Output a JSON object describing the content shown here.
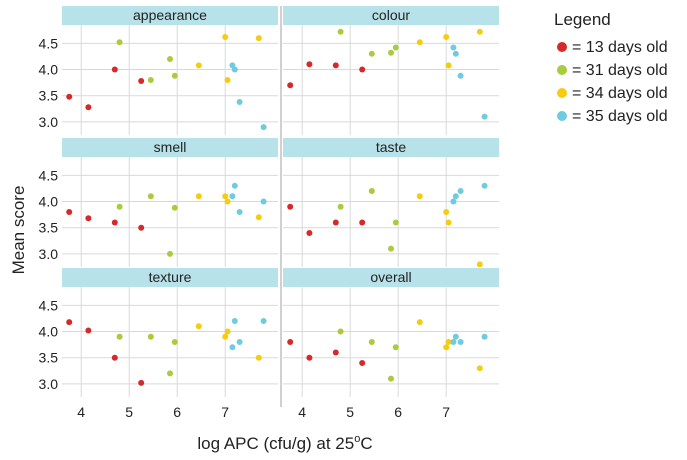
{
  "chart_data": {
    "type": "scatter",
    "xlabel": "log APC (cfu/g) at 25",
    "xlabel_sup": "o",
    "xlabel_suffix": "C",
    "ylabel": "Mean score",
    "xlim": [
      3.6,
      8.1
    ],
    "ylim": [
      2.75,
      4.85
    ],
    "xticks": [
      4,
      5,
      6,
      7
    ],
    "yticks": [
      3.0,
      3.5,
      4.0,
      4.5
    ],
    "ytick_labels": [
      "3.0",
      "3.5",
      "4.0",
      "4.5"
    ],
    "grid": true,
    "legend": {
      "title": "Legend",
      "position": "right",
      "entries": [
        {
          "label": "= 13 days old",
          "color": "#d62a2a"
        },
        {
          "label": "= 31 days old",
          "color": "#a8cc3c"
        },
        {
          "label": "= 34 days old",
          "color": "#f5cc10"
        },
        {
          "label": "= 35 days old",
          "color": "#6fcbe0"
        }
      ]
    },
    "colors": {
      "strip_bg": "#b8e2ea",
      "grid": "#d9d9d9",
      "divider": "#d0d0d0"
    },
    "panels": [
      {
        "name": "appearance",
        "series": [
          {
            "points": [
              [
                3.75,
                3.48
              ],
              [
                4.15,
                3.28
              ],
              [
                4.7,
                4.0
              ],
              [
                5.25,
                3.78
              ]
            ]
          },
          {
            "points": [
              [
                4.8,
                4.52
              ],
              [
                5.45,
                3.8
              ],
              [
                5.85,
                4.2
              ],
              [
                5.95,
                3.88
              ]
            ]
          },
          {
            "points": [
              [
                6.45,
                4.08
              ],
              [
                7.0,
                4.62
              ],
              [
                7.05,
                3.8
              ],
              [
                7.7,
                4.6
              ]
            ]
          },
          {
            "points": [
              [
                7.15,
                4.08
              ],
              [
                7.2,
                4.0
              ],
              [
                7.3,
                3.38
              ],
              [
                7.8,
                2.9
              ]
            ]
          }
        ]
      },
      {
        "name": "colour",
        "series": [
          {
            "points": [
              [
                3.75,
                3.7
              ],
              [
                4.15,
                4.1
              ],
              [
                4.7,
                4.08
              ],
              [
                5.25,
                4.0
              ]
            ]
          },
          {
            "points": [
              [
                4.8,
                4.72
              ],
              [
                5.45,
                4.3
              ],
              [
                5.85,
                4.32
              ],
              [
                5.95,
                4.42
              ]
            ]
          },
          {
            "points": [
              [
                6.45,
                4.52
              ],
              [
                7.0,
                4.62
              ],
              [
                7.05,
                4.08
              ],
              [
                7.7,
                4.72
              ]
            ]
          },
          {
            "points": [
              [
                7.15,
                4.42
              ],
              [
                7.2,
                4.3
              ],
              [
                7.3,
                3.88
              ],
              [
                7.8,
                3.1
              ]
            ]
          }
        ]
      },
      {
        "name": "smell",
        "series": [
          {
            "points": [
              [
                3.75,
                3.8
              ],
              [
                4.15,
                3.68
              ],
              [
                4.7,
                3.6
              ],
              [
                5.25,
                3.5
              ]
            ]
          },
          {
            "points": [
              [
                4.8,
                3.9
              ],
              [
                5.45,
                4.1
              ],
              [
                5.85,
                3.0
              ],
              [
                5.95,
                3.88
              ]
            ]
          },
          {
            "points": [
              [
                6.45,
                4.1
              ],
              [
                7.0,
                4.1
              ],
              [
                7.05,
                4.0
              ],
              [
                7.7,
                3.7
              ]
            ]
          },
          {
            "points": [
              [
                7.15,
                4.1
              ],
              [
                7.2,
                4.3
              ],
              [
                7.3,
                3.8
              ],
              [
                7.8,
                4.0
              ]
            ]
          }
        ]
      },
      {
        "name": "taste",
        "series": [
          {
            "points": [
              [
                3.75,
                3.9
              ],
              [
                4.15,
                3.4
              ],
              [
                4.7,
                3.6
              ],
              [
                5.25,
                3.6
              ]
            ]
          },
          {
            "points": [
              [
                4.8,
                3.9
              ],
              [
                5.45,
                4.2
              ],
              [
                5.85,
                3.1
              ],
              [
                5.95,
                3.6
              ]
            ]
          },
          {
            "points": [
              [
                6.45,
                4.1
              ],
              [
                7.0,
                3.8
              ],
              [
                7.05,
                3.6
              ],
              [
                7.7,
                2.8
              ]
            ]
          },
          {
            "points": [
              [
                7.15,
                4.0
              ],
              [
                7.2,
                4.1
              ],
              [
                7.3,
                4.2
              ],
              [
                7.8,
                4.3
              ]
            ]
          }
        ]
      },
      {
        "name": "texture",
        "series": [
          {
            "points": [
              [
                3.75,
                4.18
              ],
              [
                4.15,
                4.02
              ],
              [
                4.7,
                3.5
              ],
              [
                5.25,
                3.02
              ]
            ]
          },
          {
            "points": [
              [
                4.8,
                3.9
              ],
              [
                5.45,
                3.9
              ],
              [
                5.85,
                3.2
              ],
              [
                5.95,
                3.8
              ]
            ]
          },
          {
            "points": [
              [
                6.45,
                4.1
              ],
              [
                7.0,
                3.9
              ],
              [
                7.05,
                4.0
              ],
              [
                7.7,
                3.5
              ]
            ]
          },
          {
            "points": [
              [
                7.15,
                3.7
              ],
              [
                7.2,
                4.2
              ],
              [
                7.3,
                3.8
              ],
              [
                7.8,
                4.2
              ]
            ]
          }
        ]
      },
      {
        "name": "overall",
        "series": [
          {
            "points": [
              [
                3.75,
                3.8
              ],
              [
                4.15,
                3.5
              ],
              [
                4.7,
                3.6
              ],
              [
                5.25,
                3.4
              ]
            ]
          },
          {
            "points": [
              [
                4.8,
                4.0
              ],
              [
                5.45,
                3.8
              ],
              [
                5.85,
                3.1
              ],
              [
                5.95,
                3.7
              ]
            ]
          },
          {
            "points": [
              [
                6.45,
                4.18
              ],
              [
                7.0,
                3.7
              ],
              [
                7.05,
                3.8
              ],
              [
                7.7,
                3.3
              ]
            ]
          },
          {
            "points": [
              [
                7.15,
                3.8
              ],
              [
                7.2,
                3.9
              ],
              [
                7.3,
                3.8
              ],
              [
                7.8,
                3.9
              ]
            ]
          }
        ]
      }
    ]
  }
}
